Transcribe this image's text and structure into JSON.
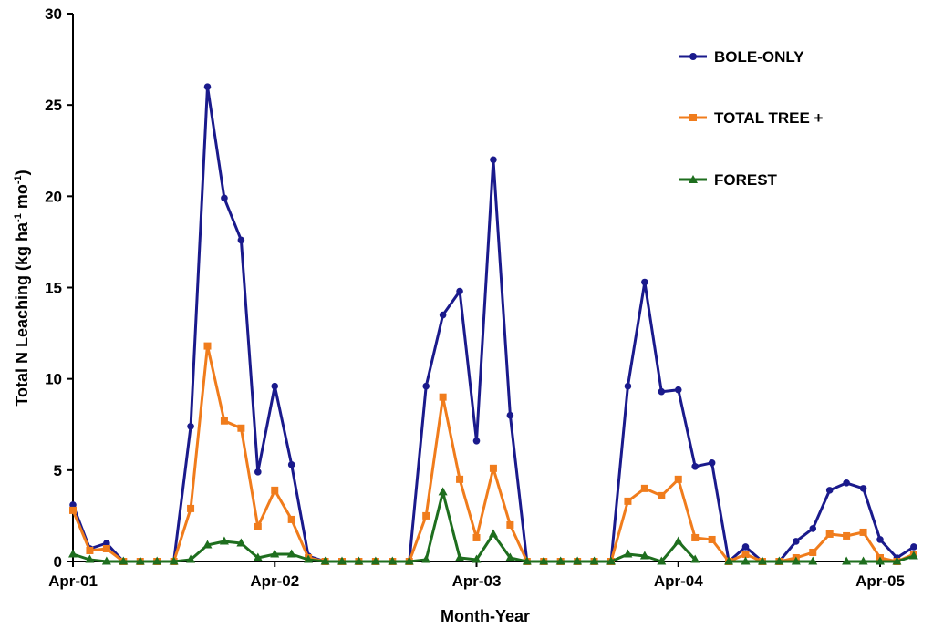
{
  "chart_data": {
    "type": "line",
    "ylabel_main": "Total N Leaching (kg ha",
    "ylabel_sup1": "-1",
    "ylabel_mid": " mo",
    "ylabel_sup2": "-1",
    "ylabel_end": ")",
    "xlabel": "Month-Year",
    "ylim": [
      0,
      30
    ],
    "yticks": [
      0,
      5,
      10,
      15,
      20,
      25,
      30
    ],
    "xlim": [
      0,
      48
    ],
    "xticks": [
      {
        "pos": 0,
        "label": "Apr-01"
      },
      {
        "pos": 12,
        "label": "Apr-02"
      },
      {
        "pos": 24,
        "label": "Apr-03"
      },
      {
        "pos": 36,
        "label": "Apr-04"
      },
      {
        "pos": 48,
        "label": "Apr-05"
      }
    ],
    "legend_position": "top-right",
    "series": [
      {
        "name": "BOLE-ONLY",
        "color": "#1a1a8c",
        "marker": "circle",
        "values": [
          3.1,
          0.7,
          1.0,
          0,
          0,
          0,
          0,
          7.4,
          26.0,
          19.9,
          17.6,
          4.9,
          9.6,
          5.3,
          0.3,
          0,
          0,
          0,
          0,
          0,
          0,
          9.6,
          13.5,
          14.8,
          6.6,
          22.0,
          8.0,
          0,
          0,
          0,
          0,
          0,
          0,
          9.6,
          15.3,
          9.3,
          9.4,
          5.2,
          5.4,
          0,
          0.8,
          0,
          0,
          1.1,
          1.8,
          3.9,
          4.3,
          4.0,
          1.2,
          0.2,
          0.8
        ]
      },
      {
        "name": "TOTAL TREE +",
        "color": "#f07c1c",
        "marker": "square",
        "values": [
          2.8,
          0.6,
          0.7,
          0,
          0,
          0,
          0,
          2.9,
          11.8,
          7.7,
          7.3,
          1.9,
          3.9,
          2.3,
          0.2,
          0,
          0,
          0,
          0,
          0,
          0,
          2.5,
          9.0,
          4.5,
          1.3,
          5.1,
          2.0,
          0,
          0,
          0,
          0,
          0,
          0,
          3.3,
          4.0,
          3.6,
          4.5,
          1.3,
          1.2,
          0,
          0.4,
          0,
          0,
          0.2,
          0.5,
          1.5,
          1.4,
          1.6,
          0.2,
          0,
          0.4
        ]
      },
      {
        "name": "FOREST",
        "color": "#1e6e1e",
        "marker": "triangle",
        "values": [
          0.4,
          0.1,
          0,
          0,
          0,
          0,
          0,
          0.1,
          0.9,
          1.1,
          1.0,
          0.2,
          0.4,
          0.4,
          0.1,
          0,
          0,
          0,
          0,
          0,
          0,
          0.1,
          3.8,
          0.2,
          0.1,
          1.5,
          0.2,
          0,
          0,
          0,
          0,
          0,
          0,
          0.4,
          0.3,
          0,
          1.1,
          0.1,
          null,
          0,
          0,
          0,
          0,
          0,
          0,
          null,
          0,
          0,
          0,
          0,
          0.3
        ]
      }
    ]
  }
}
